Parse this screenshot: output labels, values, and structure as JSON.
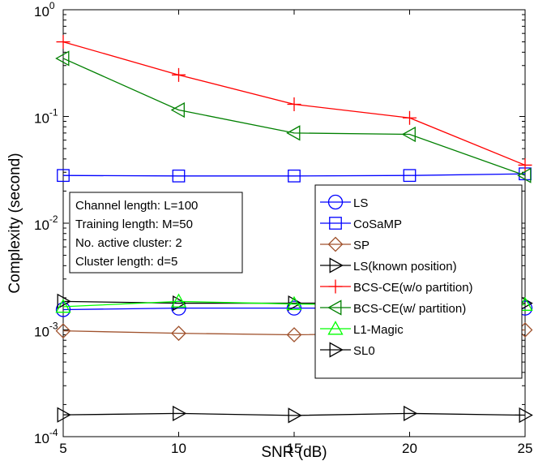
{
  "chart_data": {
    "type": "line",
    "title": "",
    "xlabel": "SNR (dB)",
    "ylabel": "Complexity (second)",
    "x": [
      5,
      10,
      15,
      20,
      25
    ],
    "xlim": [
      5,
      25
    ],
    "ylim": [
      0.0001,
      1
    ],
    "yscale": "log",
    "x_ticks": [
      "5",
      "10",
      "15",
      "20",
      "25"
    ],
    "y_ticks": [
      {
        "base": "10",
        "exp": "-4"
      },
      {
        "base": "10",
        "exp": "-3"
      },
      {
        "base": "10",
        "exp": "-2"
      },
      {
        "base": "10",
        "exp": "-1"
      },
      {
        "base": "10",
        "exp": "0"
      }
    ],
    "grid": false,
    "legend_position": "right-middle",
    "annotation": [
      "Channel length: L=100",
      "Training length: M=50",
      "No. active cluster: 2",
      "Cluster length: d=5"
    ],
    "series": [
      {
        "name": "LS",
        "color": "#0000ff",
        "marker": "circle",
        "values": [
          0.00155,
          0.0016,
          0.0016,
          0.0016,
          0.0016
        ]
      },
      {
        "name": "CoSaMP",
        "color": "#0000ff",
        "marker": "square",
        "values": [
          0.028,
          0.0277,
          0.0277,
          0.028,
          0.029
        ]
      },
      {
        "name": "SP",
        "color": "#a0522d",
        "marker": "diamond",
        "values": [
          0.00098,
          0.00093,
          0.0009,
          0.00093,
          0.001
        ]
      },
      {
        "name": "LS(known position)",
        "color": "#000000",
        "marker": "triangle-right",
        "values": [
          0.00185,
          0.00178,
          0.00178,
          0.00178,
          0.00178
        ]
      },
      {
        "name": "BCS-CE(w/o partition)",
        "color": "#ff0000",
        "marker": "plus",
        "values": [
          0.5,
          0.245,
          0.13,
          0.097,
          0.035
        ]
      },
      {
        "name": "BCS-CE(w/ partition)",
        "color": "#008000",
        "marker": "triangle-left",
        "values": [
          0.35,
          0.115,
          0.07,
          0.068,
          0.028
        ]
      },
      {
        "name": "L1-Magic",
        "color": "#00ff00",
        "marker": "triangle-up",
        "values": [
          0.00165,
          0.00185,
          0.00175,
          0.00172,
          0.00172
        ]
      },
      {
        "name": "SL0",
        "color": "#000000",
        "marker": "triangle-right",
        "values": [
          0.00016,
          0.000165,
          0.000158,
          0.000165,
          0.000159
        ]
      }
    ]
  }
}
